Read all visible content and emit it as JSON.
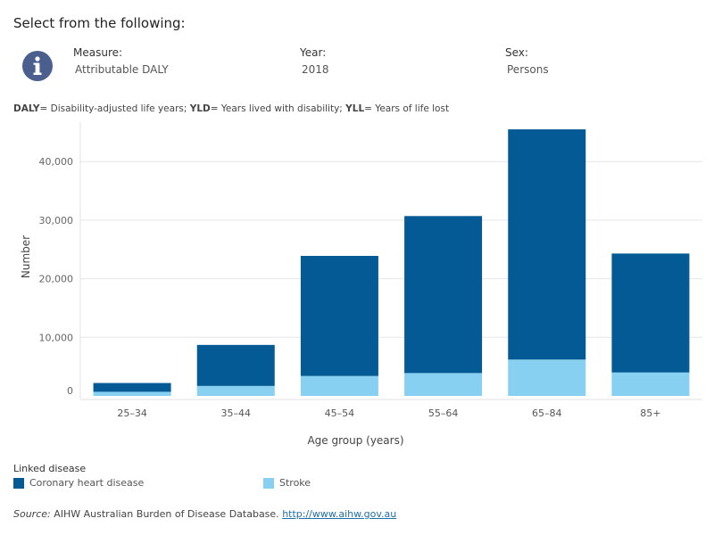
{
  "header": {
    "title": "Select from the following:",
    "icon": "info-icon"
  },
  "filters": [
    {
      "label": "Measure:",
      "value": "Attributable DALY"
    },
    {
      "label": "Year:",
      "value": "2018"
    },
    {
      "label": "Sex:",
      "value": "Persons"
    }
  ],
  "definitions": [
    {
      "abbr": "DALY",
      "text": "= Disability-adjusted life years; "
    },
    {
      "abbr": "YLD",
      "text": "= Years lived with disability; "
    },
    {
      "abbr": "YLL",
      "text": "= Years of life lost"
    }
  ],
  "legend": {
    "title": "Linked disease"
  },
  "source": {
    "prefix": "Source:",
    "text": " AIHW Australian Burden of Disease Database. ",
    "link": "http://www.aihw.gov.au"
  },
  "colors": {
    "coronary": "#045a94",
    "stroke": "#87d0f2",
    "icon": "#4a5f8e"
  },
  "chart_data": {
    "type": "bar",
    "stacked": true,
    "categories": [
      "25–34",
      "35–44",
      "45–54",
      "55–64",
      "65–84",
      "85+"
    ],
    "series": [
      {
        "name": "Stroke",
        "values": [
          700,
          1700,
          3400,
          3900,
          6200,
          4000
        ]
      },
      {
        "name": "Coronary heart disease",
        "values": [
          1500,
          7000,
          20500,
          26800,
          39300,
          20300
        ]
      }
    ],
    "xlabel": "Age group (years)",
    "ylabel": "Number",
    "ylim": [
      0,
      47000
    ],
    "yticks": [
      0,
      10000,
      20000,
      30000,
      40000
    ],
    "ytick_labels": [
      "0",
      "10,000",
      "20,000",
      "30,000",
      "40,000"
    ],
    "grid": true,
    "legend_position": "bottom"
  }
}
